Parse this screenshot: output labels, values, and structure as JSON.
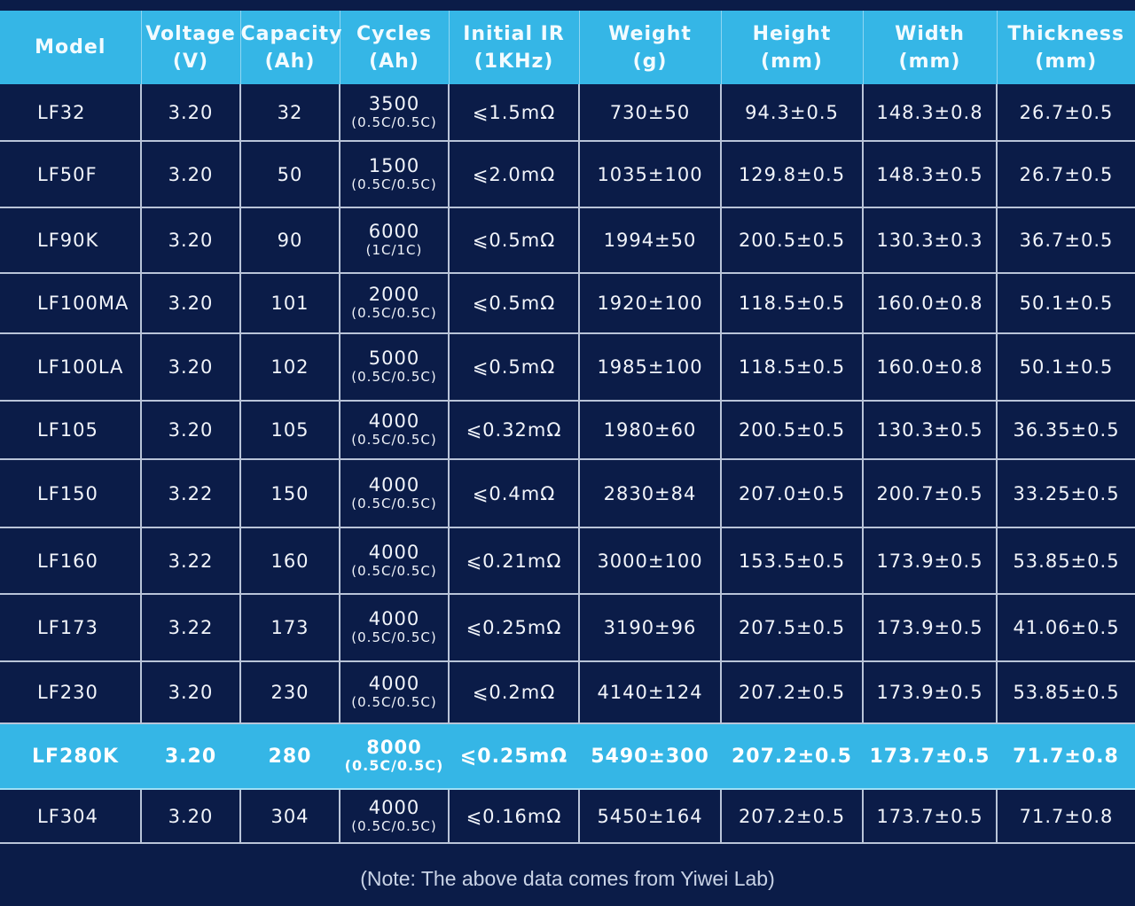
{
  "headers": [
    {
      "line1": "Model",
      "line2": ""
    },
    {
      "line1": "Voltage",
      "line2": "(V)"
    },
    {
      "line1": "Capacity",
      "line2": "(Ah)"
    },
    {
      "line1": "Cycles",
      "line2": "(Ah)"
    },
    {
      "line1": "Initial IR",
      "line2": "(1KHz)"
    },
    {
      "line1": "Weight",
      "line2": "(g)"
    },
    {
      "line1": "Height",
      "line2": "(mm)"
    },
    {
      "line1": "Width",
      "line2": "(mm)"
    },
    {
      "line1": "Thickness",
      "line2": "(mm)"
    }
  ],
  "rows": [
    {
      "model": "LF32",
      "voltage": "3.20",
      "capacity": "32",
      "cycles": "3500",
      "rate": "(0.5C/0.5C)",
      "ir": "⩽1.5mΩ",
      "weight": "730±50",
      "height": "94.3±0.5",
      "width": "148.3±0.8",
      "thickness": "26.7±0.5"
    },
    {
      "model": "LF50F",
      "voltage": "3.20",
      "capacity": "50",
      "cycles": "1500",
      "rate": "(0.5C/0.5C)",
      "ir": "⩽2.0mΩ",
      "weight": "1035±100",
      "height": "129.8±0.5",
      "width": "148.3±0.5",
      "thickness": "26.7±0.5"
    },
    {
      "model": "LF90K",
      "voltage": "3.20",
      "capacity": "90",
      "cycles": "6000",
      "rate": "(1C/1C)",
      "ir": "⩽0.5mΩ",
      "weight": "1994±50",
      "height": "200.5±0.5",
      "width": "130.3±0.3",
      "thickness": "36.7±0.5"
    },
    {
      "model": "LF100MA",
      "voltage": "3.20",
      "capacity": "101",
      "cycles": "2000",
      "rate": "(0.5C/0.5C)",
      "ir": "⩽0.5mΩ",
      "weight": "1920±100",
      "height": "118.5±0.5",
      "width": "160.0±0.8",
      "thickness": "50.1±0.5"
    },
    {
      "model": "LF100LA",
      "voltage": "3.20",
      "capacity": "102",
      "cycles": "5000",
      "rate": "(0.5C/0.5C)",
      "ir": "⩽0.5mΩ",
      "weight": "1985±100",
      "height": "118.5±0.5",
      "width": "160.0±0.8",
      "thickness": "50.1±0.5"
    },
    {
      "model": "LF105",
      "voltage": "3.20",
      "capacity": "105",
      "cycles": "4000",
      "rate": "(0.5C/0.5C)",
      "ir": "⩽0.32mΩ",
      "weight": "1980±60",
      "height": "200.5±0.5",
      "width": "130.3±0.5",
      "thickness": "36.35±0.5"
    },
    {
      "model": "LF150",
      "voltage": "3.22",
      "capacity": "150",
      "cycles": "4000",
      "rate": "(0.5C/0.5C)",
      "ir": "⩽0.4mΩ",
      "weight": "2830±84",
      "height": "207.0±0.5",
      "width": "200.7±0.5",
      "thickness": "33.25±0.5"
    },
    {
      "model": "LF160",
      "voltage": "3.22",
      "capacity": "160",
      "cycles": "4000",
      "rate": "(0.5C/0.5C)",
      "ir": "⩽0.21mΩ",
      "weight": "3000±100",
      "height": "153.5±0.5",
      "width": "173.9±0.5",
      "thickness": "53.85±0.5"
    },
    {
      "model": "LF173",
      "voltage": "3.22",
      "capacity": "173",
      "cycles": "4000",
      "rate": "(0.5C/0.5C)",
      "ir": "⩽0.25mΩ",
      "weight": "3190±96",
      "height": "207.5±0.5",
      "width": "173.9±0.5",
      "thickness": "41.06±0.5"
    },
    {
      "model": "LF230",
      "voltage": "3.20",
      "capacity": "230",
      "cycles": "4000",
      "rate": "(0.5C/0.5C)",
      "ir": "⩽0.2mΩ",
      "weight": "4140±124",
      "height": "207.2±0.5",
      "width": "173.9±0.5",
      "thickness": "53.85±0.5"
    },
    {
      "model": "LF280K",
      "voltage": "3.20",
      "capacity": "280",
      "cycles": "8000",
      "rate": "(0.5C/0.5C)",
      "ir": "⩽0.25mΩ",
      "weight": "5490±300",
      "height": "207.2±0.5",
      "width": "173.7±0.5",
      "thickness": "71.7±0.8"
    },
    {
      "model": "LF304",
      "voltage": "3.20",
      "capacity": "304",
      "cycles": "4000",
      "rate": "(0.5C/0.5C)",
      "ir": "⩽0.16mΩ",
      "weight": "5450±164",
      "height": "207.2±0.5",
      "width": "173.7±0.5",
      "thickness": "71.7±0.8"
    }
  ],
  "highlight_model": "LF280K",
  "note": "(Note: The above data comes from Yiwei Lab)",
  "colors": {
    "background": "#0b1c48",
    "accent": "#35b6e6",
    "grid": "#b9c4d8"
  }
}
